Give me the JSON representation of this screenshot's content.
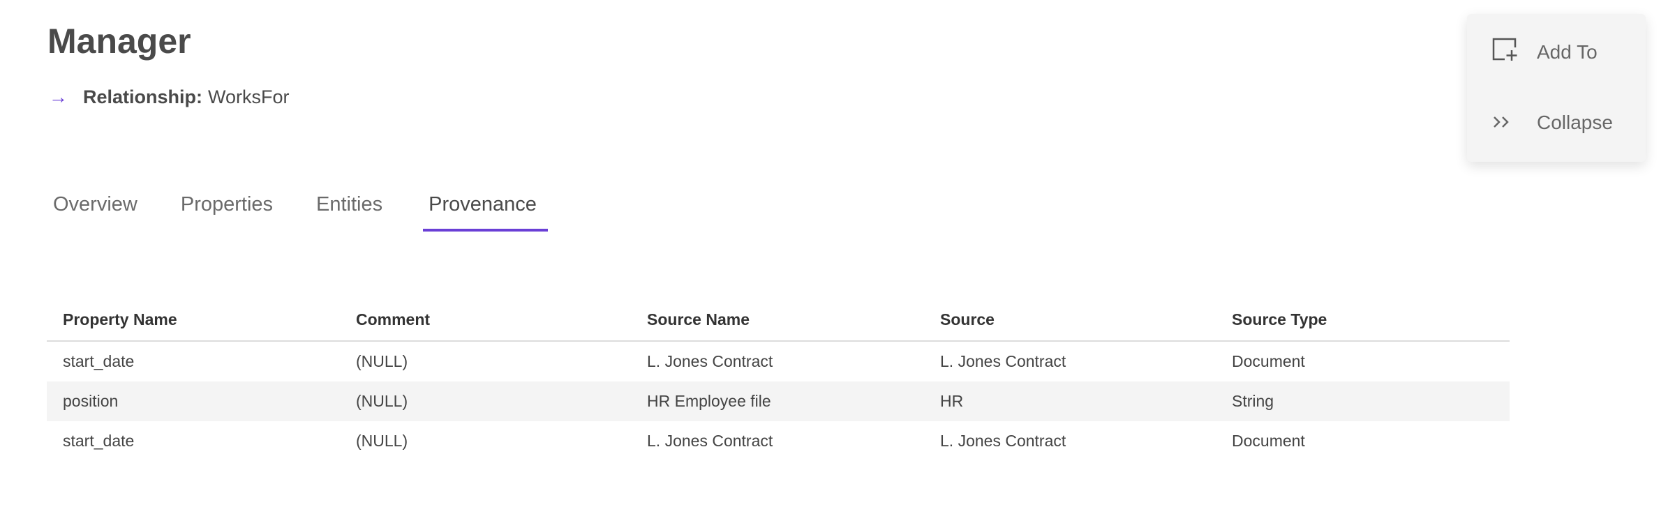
{
  "header": {
    "title": "Manager",
    "relationship_label": "Relationship:",
    "relationship_value": "WorksFor",
    "arrow_icon": "arrow-right-icon"
  },
  "tabs": [
    {
      "label": "Overview",
      "active": false
    },
    {
      "label": "Properties",
      "active": false
    },
    {
      "label": "Entities",
      "active": false
    },
    {
      "label": "Provenance",
      "active": true
    }
  ],
  "accent_color": "#6a3fd6",
  "table": {
    "columns": [
      "Property Name",
      "Comment",
      "Source Name",
      "Source",
      "Source Type"
    ],
    "rows": [
      [
        "start_date",
        "(NULL)",
        "L. Jones Contract",
        "L. Jones Contract",
        "Document"
      ],
      [
        "position",
        "(NULL)",
        "HR Employee file",
        "HR",
        "String"
      ],
      [
        "start_date",
        "(NULL)",
        "L. Jones Contract",
        "L. Jones Contract",
        "Document"
      ]
    ]
  },
  "menu": {
    "add_to": "Add To",
    "collapse": "Collapse"
  }
}
